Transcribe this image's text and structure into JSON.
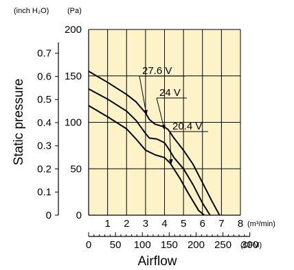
{
  "chart_data": {
    "type": "line",
    "title": "",
    "xlabel": "Airflow",
    "ylabel": "Static pressure",
    "x_units": {
      "primary": "(m³/min)",
      "secondary": "(CFM)"
    },
    "y_units": {
      "primary": "(Pa)",
      "secondary": "(inch H₂O)"
    },
    "xlim": [
      0,
      8
    ],
    "ylim": [
      0,
      200
    ],
    "x_ticks_m3min": [
      "1",
      "2",
      "3",
      "4",
      "5",
      "6",
      "7",
      "8"
    ],
    "x_ticks_cfm": [
      "0",
      "50",
      "100",
      "150",
      "200",
      "250",
      "300"
    ],
    "y_ticks_pa": [
      "0",
      "50",
      "100",
      "150",
      "200"
    ],
    "y_ticks_inch": [
      "0",
      "0.1",
      "0.2",
      "0.3",
      "0.4",
      "0.5",
      "0.6",
      "0.7"
    ],
    "grid": true,
    "colors": {
      "line": "#000000",
      "plot_bg": "#fdf2c8"
    },
    "series": [
      {
        "name": "27.6 V",
        "x": [
          0,
          1,
          2,
          2.5,
          3.0,
          3.2,
          3.5,
          4.0,
          4.2,
          4.5,
          5.0,
          5.5,
          6.0,
          6.5,
          6.9
        ],
        "y": [
          155,
          143,
          130,
          122,
          110,
          103,
          98,
          95,
          92,
          83,
          70,
          55,
          35,
          15,
          0
        ]
      },
      {
        "name": "24 V",
        "x": [
          0,
          1,
          2,
          2.5,
          3.0,
          3.2,
          3.6,
          4.0,
          4.2,
          4.5,
          5.0,
          5.5,
          6.0,
          6.4
        ],
        "y": [
          136,
          125,
          112,
          102,
          88,
          83,
          82,
          78,
          72,
          62,
          50,
          33,
          13,
          0
        ]
      },
      {
        "name": "20.4 V",
        "x": [
          0,
          1,
          2,
          2.5,
          3.0,
          3.5,
          4.0,
          4.3,
          4.8,
          5.3,
          5.8,
          6.1
        ],
        "y": [
          118,
          106,
          93,
          82,
          70,
          65,
          62,
          56,
          40,
          22,
          5,
          0
        ]
      }
    ]
  }
}
